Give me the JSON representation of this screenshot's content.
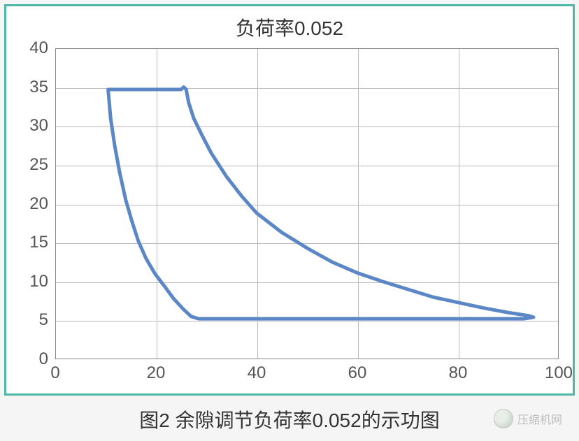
{
  "chart": {
    "type": "line-loop",
    "title": "负荷率0.052",
    "title_fontsize": 28,
    "xlim": [
      0,
      100
    ],
    "ylim": [
      0,
      40
    ],
    "xticks": [
      0,
      20,
      40,
      60,
      80,
      100
    ],
    "yticks": [
      0,
      5,
      10,
      15,
      20,
      25,
      30,
      35,
      40
    ],
    "tick_fontsize": 24,
    "grid_color": "#bbbbbb",
    "background_color": "#ffffff",
    "frame_border_color": "#4db8a8",
    "line_color": "#5b87c7",
    "line_width": 5,
    "top_connector_width": 1.5,
    "series_loop": [
      [
        10.5,
        34.7
      ],
      [
        11.0,
        31.0
      ],
      [
        11.8,
        27.5
      ],
      [
        12.8,
        24.0
      ],
      [
        14.0,
        20.5
      ],
      [
        15.2,
        17.8
      ],
      [
        16.5,
        15.2
      ],
      [
        18.0,
        13.0
      ],
      [
        19.8,
        11.0
      ],
      [
        21.8,
        9.3
      ],
      [
        23.5,
        7.8
      ],
      [
        25.5,
        6.4
      ],
      [
        27.0,
        5.5
      ],
      [
        28.5,
        5.2
      ],
      [
        30.0,
        5.2
      ],
      [
        40.0,
        5.2
      ],
      [
        55.0,
        5.2
      ],
      [
        70.0,
        5.2
      ],
      [
        85.0,
        5.2
      ],
      [
        93.0,
        5.2
      ],
      [
        95.0,
        5.4
      ],
      [
        94.0,
        5.6
      ],
      [
        90.0,
        6.0
      ],
      [
        85.0,
        6.6
      ],
      [
        80.0,
        7.3
      ],
      [
        75.0,
        8.0
      ],
      [
        70.0,
        9.0
      ],
      [
        65.0,
        10.0
      ],
      [
        60.0,
        11.1
      ],
      [
        55.0,
        12.5
      ],
      [
        50.0,
        14.3
      ],
      [
        45.0,
        16.3
      ],
      [
        40.0,
        18.8
      ],
      [
        37.0,
        21.0
      ],
      [
        34.0,
        23.5
      ],
      [
        31.0,
        26.5
      ],
      [
        29.0,
        29.0
      ],
      [
        27.5,
        31.0
      ],
      [
        26.5,
        33.0
      ],
      [
        26.0,
        34.7
      ],
      [
        25.5,
        35.0
      ],
      [
        25.0,
        34.7
      ],
      [
        22.0,
        34.7
      ],
      [
        18.0,
        34.7
      ],
      [
        14.0,
        34.7
      ],
      [
        10.5,
        34.7
      ]
    ],
    "top_connector": [
      [
        10.5,
        34.7
      ],
      [
        25.5,
        34.8
      ]
    ]
  },
  "caption": "图2 余隙调节负荷率0.052的示功图",
  "caption_fontsize": 28,
  "watermark_text": "压缩机网"
}
